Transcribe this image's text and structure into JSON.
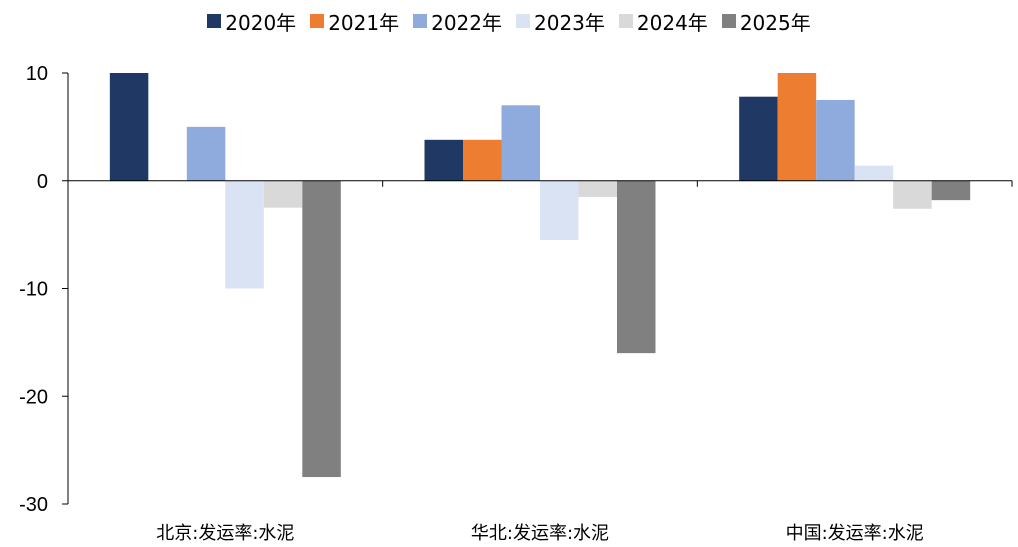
{
  "chart_data": {
    "type": "bar",
    "categories": [
      "北京:发运率:水泥",
      "华北:发运率:水泥",
      "中国:发运率:水泥"
    ],
    "series": [
      {
        "name": "2020年",
        "color": "#203864",
        "values": [
          10,
          3.8,
          7.8
        ]
      },
      {
        "name": "2021年",
        "color": "#ED7D31",
        "values": [
          null,
          3.8,
          10
        ]
      },
      {
        "name": "2022年",
        "color": "#8FAADC",
        "values": [
          5,
          7,
          7.5
        ]
      },
      {
        "name": "2023年",
        "color": "#DAE3F3",
        "values": [
          -10,
          -5.5,
          1.4
        ]
      },
      {
        "name": "2024年",
        "color": "#D9D9D9",
        "values": [
          -2.5,
          -1.5,
          -2.6
        ]
      },
      {
        "name": "2025年",
        "color": "#808080",
        "values": [
          -27.5,
          -16,
          -1.8
        ]
      }
    ],
    "yticks": [
      10,
      0,
      -10,
      -20,
      -30
    ],
    "ylim": [
      -30,
      10
    ],
    "legend_position": "top-center",
    "grid": false
  }
}
